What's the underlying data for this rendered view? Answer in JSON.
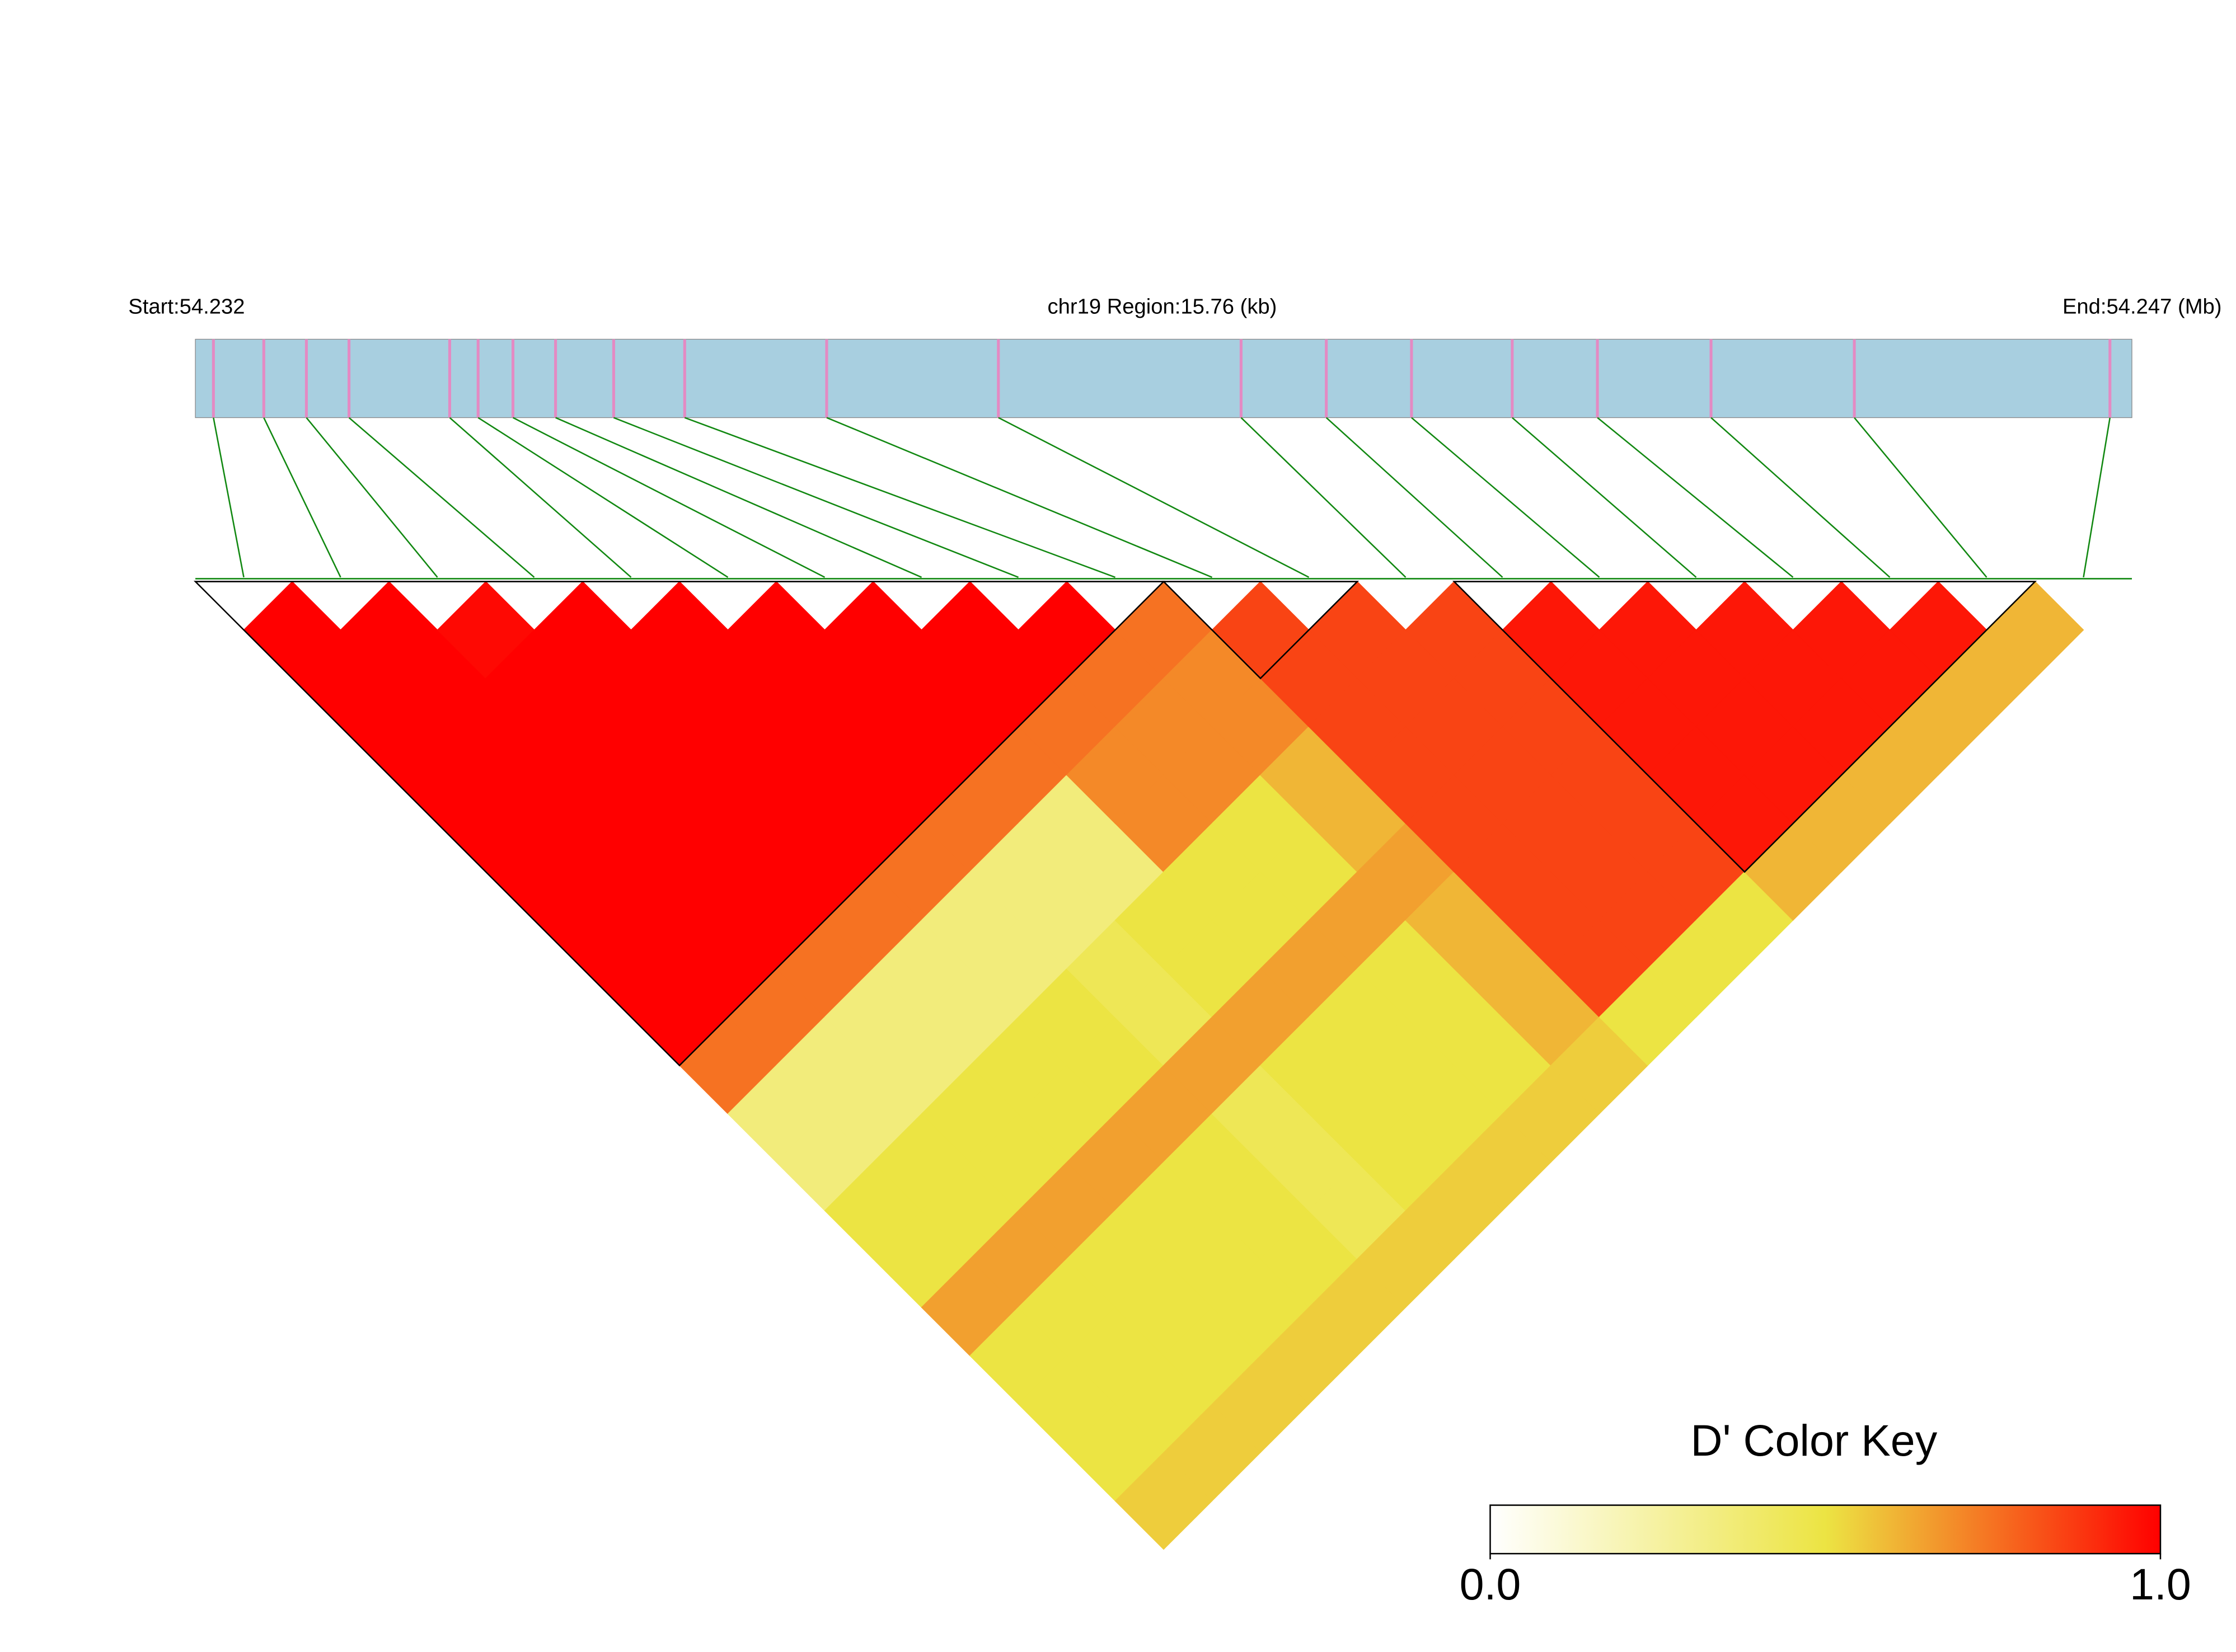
{
  "chart_data": {
    "type": "ld-heatmap",
    "title_left": "Start:54.232",
    "title_center": "chr19 Region:15.76 (kb)",
    "title_right": "End:54.247 (Mb)",
    "xlim": [
      54.232,
      54.247
    ],
    "positions": [
      54.23214,
      54.23253,
      54.23286,
      54.23319,
      54.23397,
      54.23419,
      54.23446,
      54.23479,
      54.23524,
      54.23579,
      54.23689,
      54.23822,
      54.2401,
      54.24076,
      54.24142,
      54.2422,
      54.24286,
      54.24374,
      54.24485,
      54.24683
    ],
    "track_color": "#a8cfe0",
    "snp_color": "#e48ac3",
    "link_color": "#118811",
    "ld": [
      [
        1,
        1,
        1,
        1,
        1,
        1,
        1,
        1,
        1,
        0.75,
        0.35,
        0.35,
        0.5,
        0.5,
        0.65,
        0.5,
        0.5,
        0.5,
        0.55
      ],
      [
        1,
        1,
        1,
        1,
        1,
        1,
        1,
        1,
        0.75,
        0.35,
        0.35,
        0.5,
        0.5,
        0.65,
        0.5,
        0.5,
        0.5,
        0.55
      ],
      [
        0.98,
        1,
        1,
        1,
        1,
        1,
        1,
        0.75,
        0.35,
        0.35,
        0.5,
        0.5,
        0.65,
        0.5,
        0.5,
        0.5,
        0.55
      ],
      [
        1,
        1,
        1,
        1,
        1,
        1,
        0.75,
        0.35,
        0.35,
        0.5,
        0.5,
        0.65,
        0.5,
        0.5,
        0.5,
        0.55
      ],
      [
        1,
        1,
        1,
        1,
        1,
        0.75,
        0.35,
        0.35,
        0.5,
        0.5,
        0.65,
        0.5,
        0.5,
        0.5,
        0.55
      ],
      [
        1,
        1,
        1,
        1,
        0.75,
        0.35,
        0.35,
        0.45,
        0.45,
        0.65,
        0.45,
        0.45,
        0.45,
        0.55
      ],
      [
        1,
        1,
        1,
        0.75,
        0.35,
        0.35,
        0.5,
        0.5,
        0.65,
        0.5,
        0.5,
        0.5,
        0.55
      ],
      [
        1,
        1,
        0.75,
        0.7,
        0.7,
        0.5,
        0.5,
        0.65,
        0.5,
        0.5,
        0.5,
        0.55
      ],
      [
        1,
        0.75,
        0.7,
        0.7,
        0.5,
        0.5,
        0.65,
        0.5,
        0.5,
        0.5,
        0.55
      ],
      [
        0.75,
        0.7,
        0.7,
        0.6,
        0.6,
        0.65,
        0.6,
        0.6,
        0.6,
        0.55
      ],
      [
        0.85,
        0.85,
        0.85,
        0.85,
        0.85,
        0.85,
        0.85,
        0.85,
        0.5
      ],
      [
        0.85,
        0.85,
        0.85,
        0.85,
        0.85,
        0.85,
        0.85,
        0.5
      ],
      [
        0.85,
        0.85,
        0.85,
        0.85,
        0.85,
        0.85,
        0.5
      ],
      [
        0.95,
        0.95,
        0.95,
        0.95,
        0.95,
        0.6
      ],
      [
        0.95,
        0.95,
        0.95,
        0.95,
        0.6
      ],
      [
        0.95,
        0.95,
        0.95,
        0.6
      ],
      [
        0.95,
        0.95,
        0.6
      ],
      [
        0.95,
        0.6
      ],
      [
        0.6
      ]
    ],
    "blocks": [
      [
        0,
        9
      ],
      [
        10,
        11
      ],
      [
        13,
        18
      ]
    ],
    "colorbar": {
      "title": "D' Color Key",
      "lim": [
        0,
        1
      ],
      "ticks": [
        {
          "value": 0,
          "label": "0.0"
        },
        {
          "value": 1,
          "label": "1.0"
        }
      ],
      "colors": [
        "#ffffff",
        "#ece443",
        "#ff0000"
      ]
    }
  }
}
